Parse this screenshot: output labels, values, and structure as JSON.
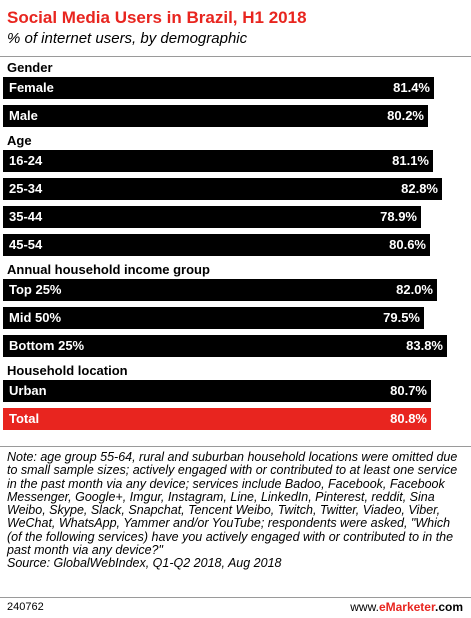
{
  "title": "Social Media Users in Brazil, H1 2018",
  "subtitle": "% of internet users, by demographic",
  "colors": {
    "bar": "#000000",
    "total_bar": "#e8251f",
    "title": "#e8251f",
    "rule": "#9a9a9a"
  },
  "chart_data": {
    "type": "bar",
    "orientation": "horizontal",
    "unit": "%",
    "xlim": [
      0,
      83.8
    ],
    "groups": [
      {
        "label": "Gender",
        "categories": [
          "Female",
          "Male"
        ],
        "values": [
          81.4,
          80.2
        ],
        "value_labels": [
          "81.4%",
          "80.2%"
        ]
      },
      {
        "label": "Age",
        "categories": [
          "16-24",
          "25-34",
          "35-44",
          "45-54"
        ],
        "values": [
          81.1,
          82.8,
          78.9,
          80.6
        ],
        "value_labels": [
          "81.1%",
          "82.8%",
          "78.9%",
          "80.6%"
        ]
      },
      {
        "label": "Annual household income group",
        "categories": [
          "Top 25%",
          "Mid 50%",
          "Bottom 25%"
        ],
        "values": [
          82.0,
          79.5,
          83.8
        ],
        "value_labels": [
          "82.0%",
          "79.5%",
          "83.8%"
        ]
      },
      {
        "label": "Household location",
        "categories": [
          "Urban",
          "Total"
        ],
        "values": [
          80.7,
          80.8
        ],
        "value_labels": [
          "80.7%",
          "80.8%"
        ],
        "highlight": "Total"
      }
    ]
  },
  "note": "Note: age group 55-64, rural and suburban household locations were omitted due to small sample sizes; actively engaged with or contributed to at least one service in the past month via any device; services include Badoo, Facebook, Facebook Messenger, Google+, Imgur, Instagram, Line, LinkedIn, Pinterest, reddit, Sina Weibo, Skype, Slack, Snapchat, Tencent Weibo, Twitch, Twitter, Viadeo, Viber, WeChat, WhatsApp, Yammer and/or YouTube; respondents were asked, \"Which (of the following services) have you actively engaged with or contributed to in the past month via any device?\"",
  "source": "Source: GlobalWebIndex, Q1-Q2 2018, Aug 2018",
  "footer": {
    "id": "240762",
    "brand_prefix": "www.",
    "brand_em": "eMarketer",
    "brand_suffix": ".com"
  }
}
